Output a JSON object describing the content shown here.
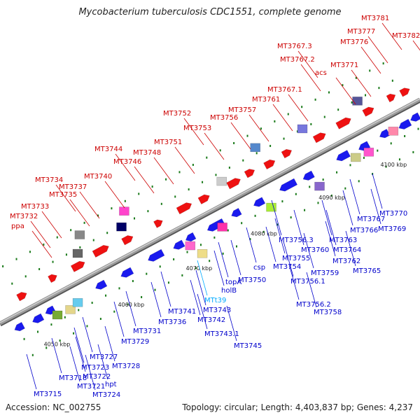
{
  "title": "Mycobacterium tuberculosis CDC1551, complete genome",
  "footer": {
    "accession": "Accession: NC_002755",
    "summary": "Topology: circular; Length: 4,403,837 bp; Genes: 4,237"
  },
  "colors": {
    "red_label": "#cc0000",
    "blue_label": "#0000cc",
    "cyan_label": "#00aaff",
    "backbone": "#888888",
    "tick": "#1a7a1a"
  },
  "kbp_ticks": [
    "4050 kbp",
    "4060 kbp",
    "4070 kbp",
    "4080 kbp",
    "4090 kbp",
    "4100 kbp"
  ],
  "top_labels": [
    "ppa",
    "MT3732",
    "MT3733",
    "MT3734",
    "MT3735",
    "MT3737",
    "MT3740",
    "MT3744",
    "MT3746",
    "MT3748",
    "MT3751",
    "MT3752",
    "MT3753",
    "MT3756",
    "MT3757",
    "MT3761",
    "MT3767.1",
    "MT3767.2",
    "MT3767.3",
    "acs",
    "MT3771",
    "MT3776",
    "MT3777",
    "MT3781",
    "MT3782"
  ],
  "bottom_labels": [
    "MT3715",
    "MT3718",
    "MT3721",
    "MT3722",
    "MT3723",
    "MT3724",
    "hpt",
    "MT3727",
    "MT3728",
    "MT3729",
    "MT3731",
    "MT3736",
    "MT3741",
    "MT3742",
    "MT3743",
    "MT3743.1",
    "MT3745",
    "MTt39",
    "holB",
    "topA",
    "MT3750",
    "csp",
    "MT3754",
    "MT3755",
    "MT3756.1",
    "MT3756.2",
    "MT3756.3",
    "MT3758",
    "MT3759",
    "MT3760",
    "MT3762",
    "MT3763",
    "MT3764",
    "MT3765",
    "MT3766",
    "MT3767",
    "MT3769",
    "MT3770"
  ]
}
